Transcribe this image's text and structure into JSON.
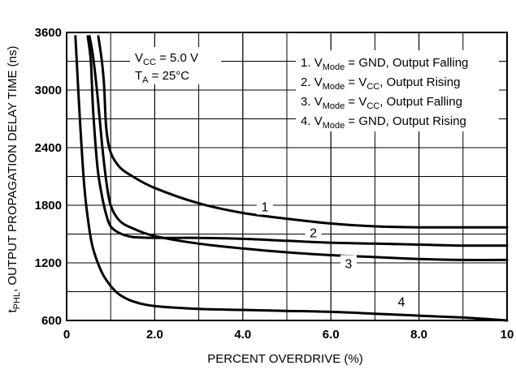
{
  "chart_data": {
    "type": "line",
    "xlabel": "PERCENT OVERDRIVE (%)",
    "ylabel": {
      "prefix": "t",
      "sub": "PHL",
      "text": ", OUTPUT PROPAGATION DELAY TIME (ns)"
    },
    "xlim": [
      0,
      10
    ],
    "ylim": [
      600,
      3600
    ],
    "xticks": [
      "0",
      "2.0",
      "4.0",
      "6.0",
      "8.0",
      "10"
    ],
    "xtick_values": [
      0,
      2,
      4,
      6,
      8,
      10
    ],
    "yticks": [
      "600",
      "1200",
      "1800",
      "2400",
      "3000",
      "3600"
    ],
    "ytick_values": [
      600,
      1200,
      1800,
      2400,
      3000,
      3600
    ],
    "grid_x": [
      1,
      2,
      3,
      4,
      5,
      6,
      7,
      8,
      9
    ],
    "grid_y": [
      900,
      1500,
      2100,
      2700,
      3300
    ],
    "grid": true,
    "conditions": {
      "vcc": {
        "base": "V",
        "sub": "CC",
        "rest": " = 5.0 V"
      },
      "ta": {
        "base": "T",
        "sub": "A",
        "rest": " = 25°C"
      }
    },
    "legend": [
      {
        "num": "1. ",
        "base": "V",
        "sub": "Mode",
        "mid": " = GND",
        "sub2": "",
        "tail": ", Output Falling"
      },
      {
        "num": "2. ",
        "base": "V",
        "sub": "Mode",
        "mid": " = V",
        "sub2": "CC",
        "tail": ", Output Rising"
      },
      {
        "num": "3. ",
        "base": "V",
        "sub": "Mode",
        "mid": " = V",
        "sub2": "CC",
        "tail": ", Output Falling"
      },
      {
        "num": "4. ",
        "base": "V",
        "sub": "Mode",
        "mid": " = GND",
        "sub2": "",
        "tail": ", Output Rising"
      }
    ],
    "series": [
      {
        "label": "1",
        "label_at": [
          4.5,
          1770
        ],
        "x": [
          0.72,
          0.8,
          0.85,
          0.9,
          1.0,
          1.2,
          1.5,
          2.0,
          3.0,
          4.0,
          5.0,
          6.0,
          7.0,
          8.0,
          9.0,
          10.0
        ],
        "y": [
          3560,
          3300,
          3050,
          2600,
          2350,
          2200,
          2100,
          1980,
          1820,
          1720,
          1660,
          1610,
          1580,
          1570,
          1570,
          1570
        ]
      },
      {
        "label": "2",
        "label_at": [
          5.6,
          1500
        ],
        "x": [
          0.48,
          0.55,
          0.6,
          0.7,
          0.8,
          0.9,
          1.0,
          1.2,
          1.5,
          2.0,
          3.0,
          4.0,
          5.0,
          6.0,
          7.0,
          8.0,
          9.0,
          10.0
        ],
        "y": [
          3560,
          3300,
          2800,
          2200,
          1900,
          1700,
          1580,
          1510,
          1470,
          1460,
          1460,
          1450,
          1430,
          1410,
          1400,
          1390,
          1380,
          1380
        ]
      },
      {
        "label": "3",
        "label_at": [
          6.4,
          1180
        ],
        "x": [
          0.52,
          0.6,
          0.7,
          0.8,
          0.9,
          1.0,
          1.2,
          1.5,
          2.0,
          3.0,
          4.0,
          5.0,
          6.0,
          7.0,
          8.0,
          9.0,
          10.0
        ],
        "y": [
          3560,
          3350,
          2950,
          2450,
          2050,
          1800,
          1640,
          1560,
          1480,
          1400,
          1350,
          1310,
          1280,
          1260,
          1240,
          1230,
          1230
        ]
      },
      {
        "label": "4",
        "label_at": [
          7.6,
          780
        ],
        "x": [
          0.2,
          0.3,
          0.4,
          0.5,
          0.6,
          0.8,
          1.0,
          1.2,
          1.5,
          2.0,
          3.0,
          4.0,
          5.0,
          6.0,
          7.0,
          8.0,
          9.0,
          10.0
        ],
        "y": [
          3560,
          2700,
          2000,
          1600,
          1350,
          1100,
          960,
          870,
          800,
          750,
          720,
          710,
          700,
          690,
          670,
          650,
          630,
          600
        ]
      }
    ]
  }
}
